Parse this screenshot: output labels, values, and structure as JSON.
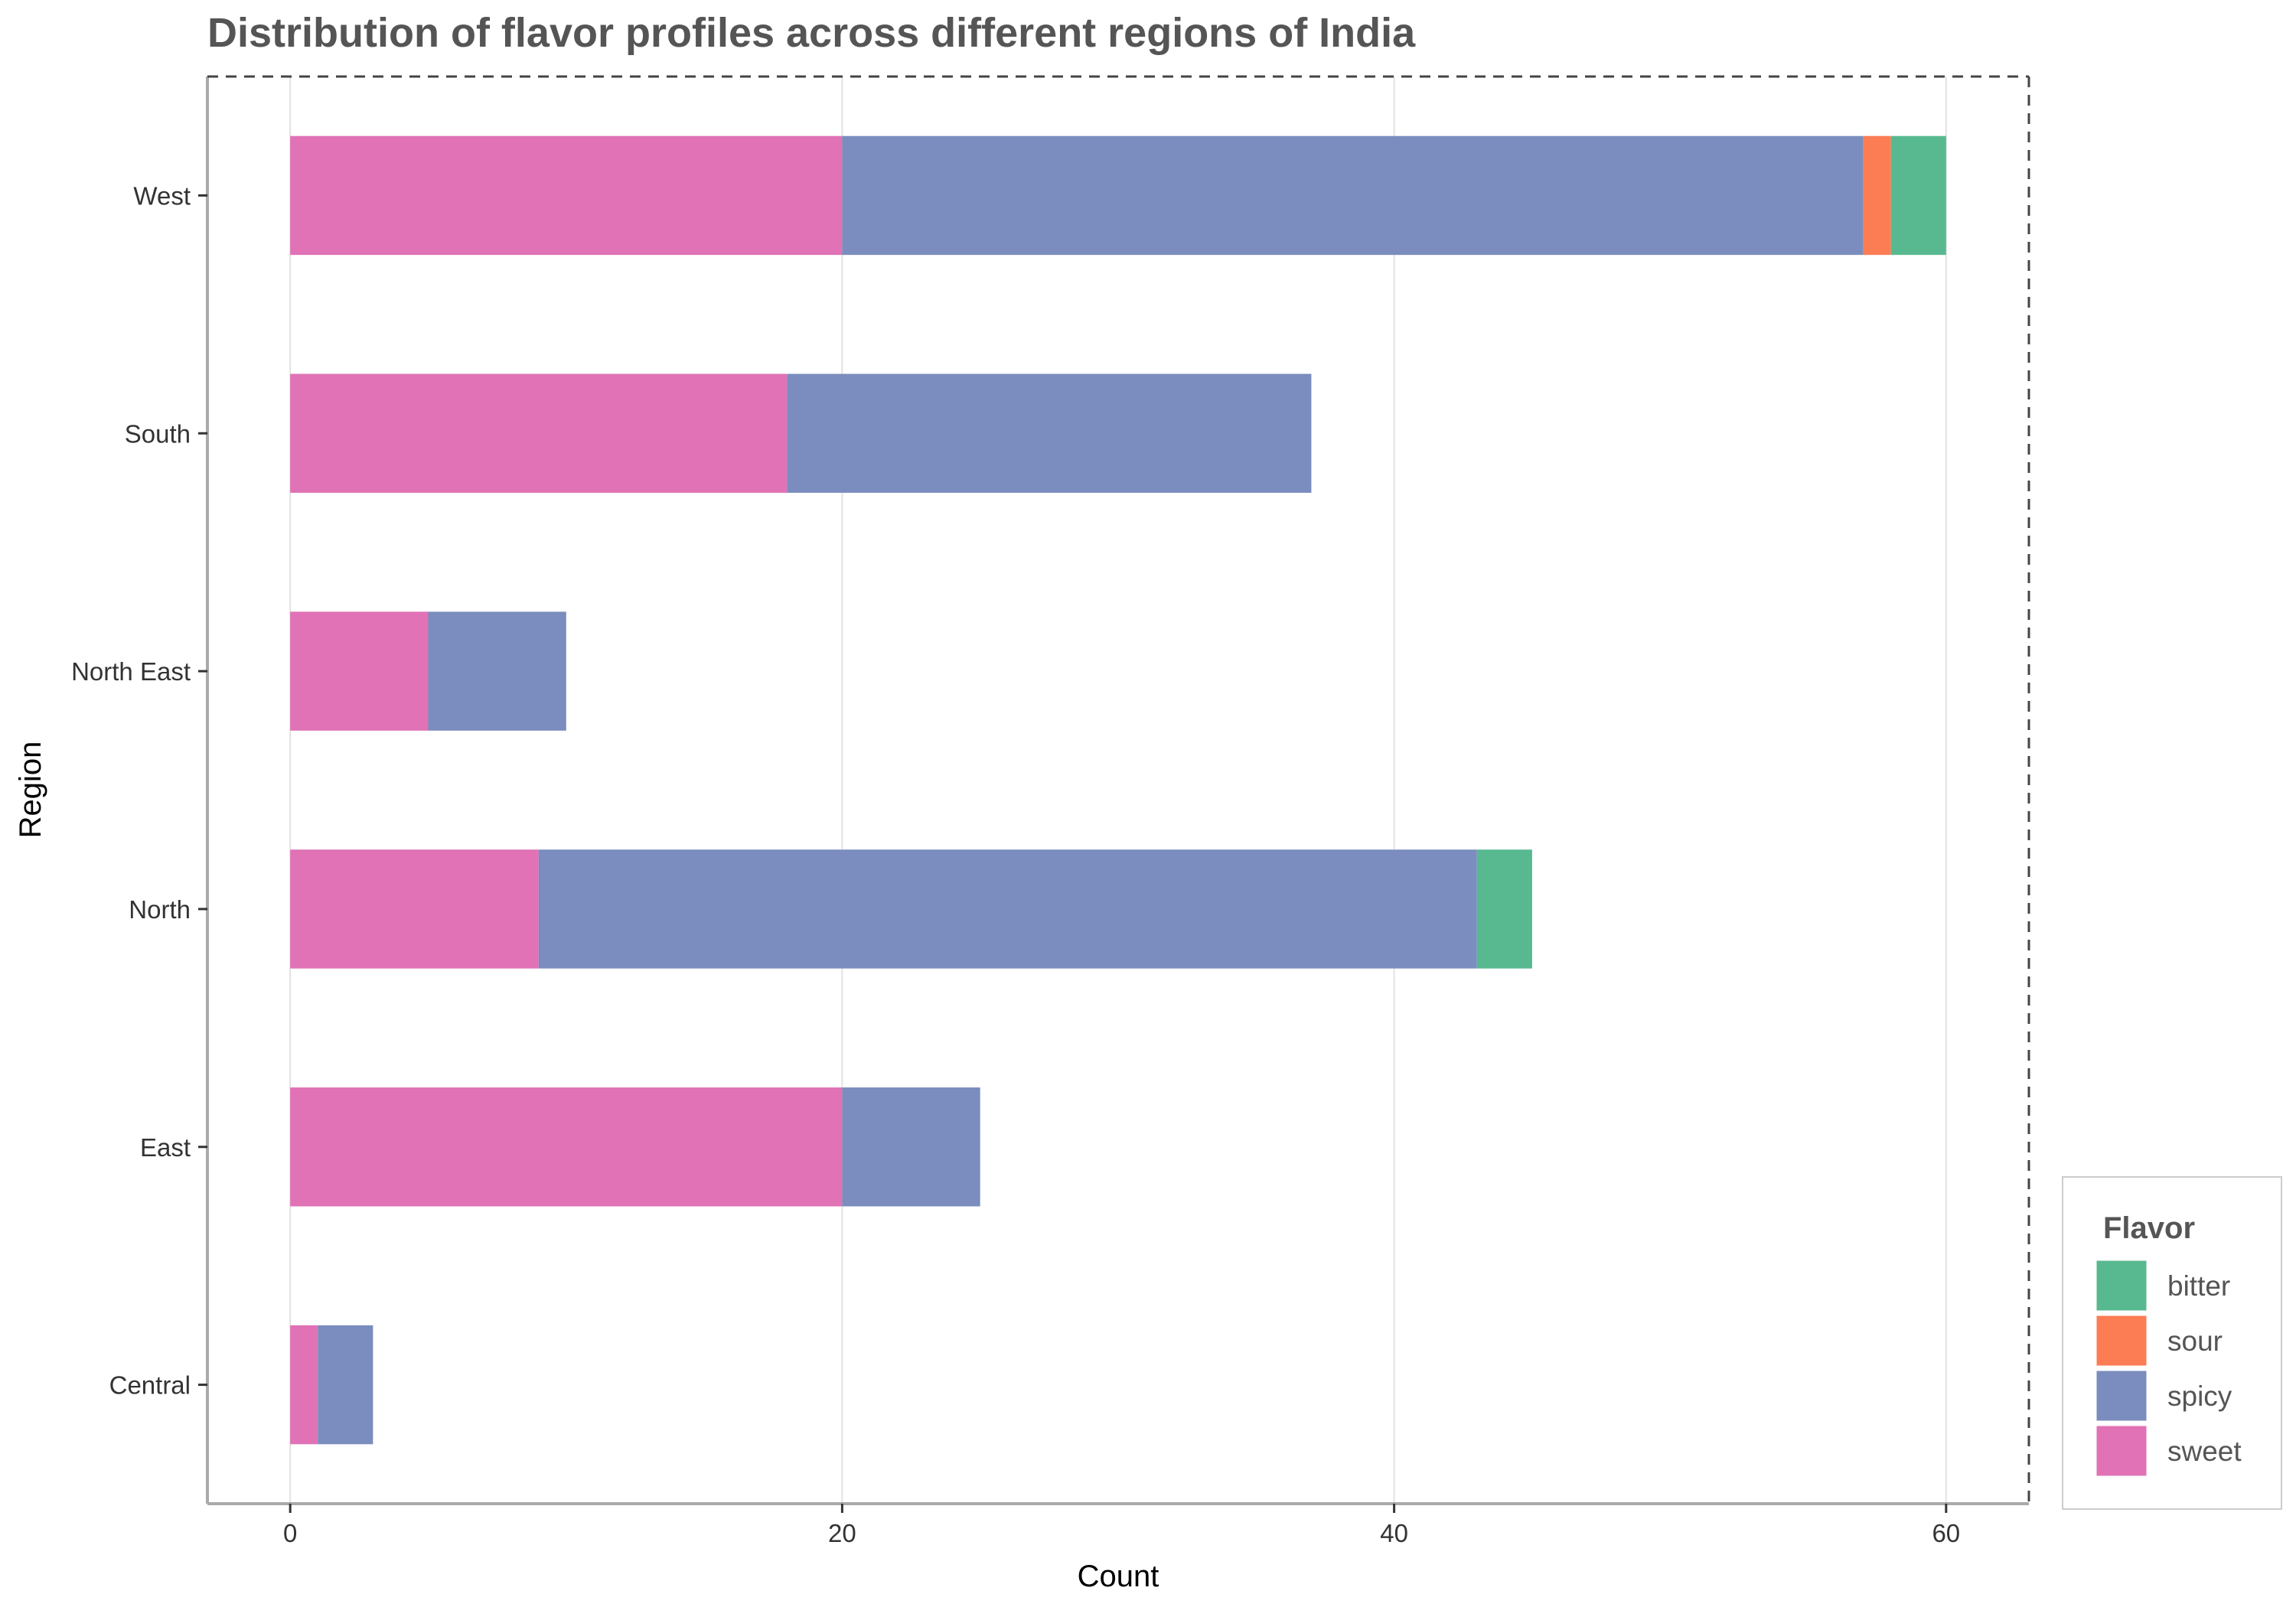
{
  "chart_data": {
    "type": "bar",
    "orientation": "horizontal",
    "stacked": true,
    "title": "Distribution of flavor profiles across different regions of India",
    "xlabel": "Count",
    "ylabel": "Region",
    "xlim": [
      -3,
      63
    ],
    "x_ticks": [
      0,
      20,
      40,
      60
    ],
    "grid": "vertical major gridlines",
    "categories": [
      "Central",
      "East",
      "North",
      "North East",
      "South",
      "West"
    ],
    "series": [
      {
        "name": "sweet",
        "color": "#E072B5",
        "values": [
          1,
          20,
          9,
          5,
          18,
          20
        ]
      },
      {
        "name": "spicy",
        "color": "#7B8DBE",
        "values": [
          2,
          5,
          34,
          5,
          19,
          37
        ]
      },
      {
        "name": "sour",
        "color": "#FC7D54",
        "values": [
          0,
          0,
          0,
          0,
          0,
          1
        ]
      },
      {
        "name": "bitter",
        "color": "#58B990",
        "values": [
          0,
          0,
          2,
          0,
          0,
          2
        ]
      }
    ],
    "legend": {
      "title": "Flavor",
      "placement": "bottom-right",
      "items": [
        "bitter",
        "sour",
        "spicy",
        "sweet"
      ]
    }
  }
}
